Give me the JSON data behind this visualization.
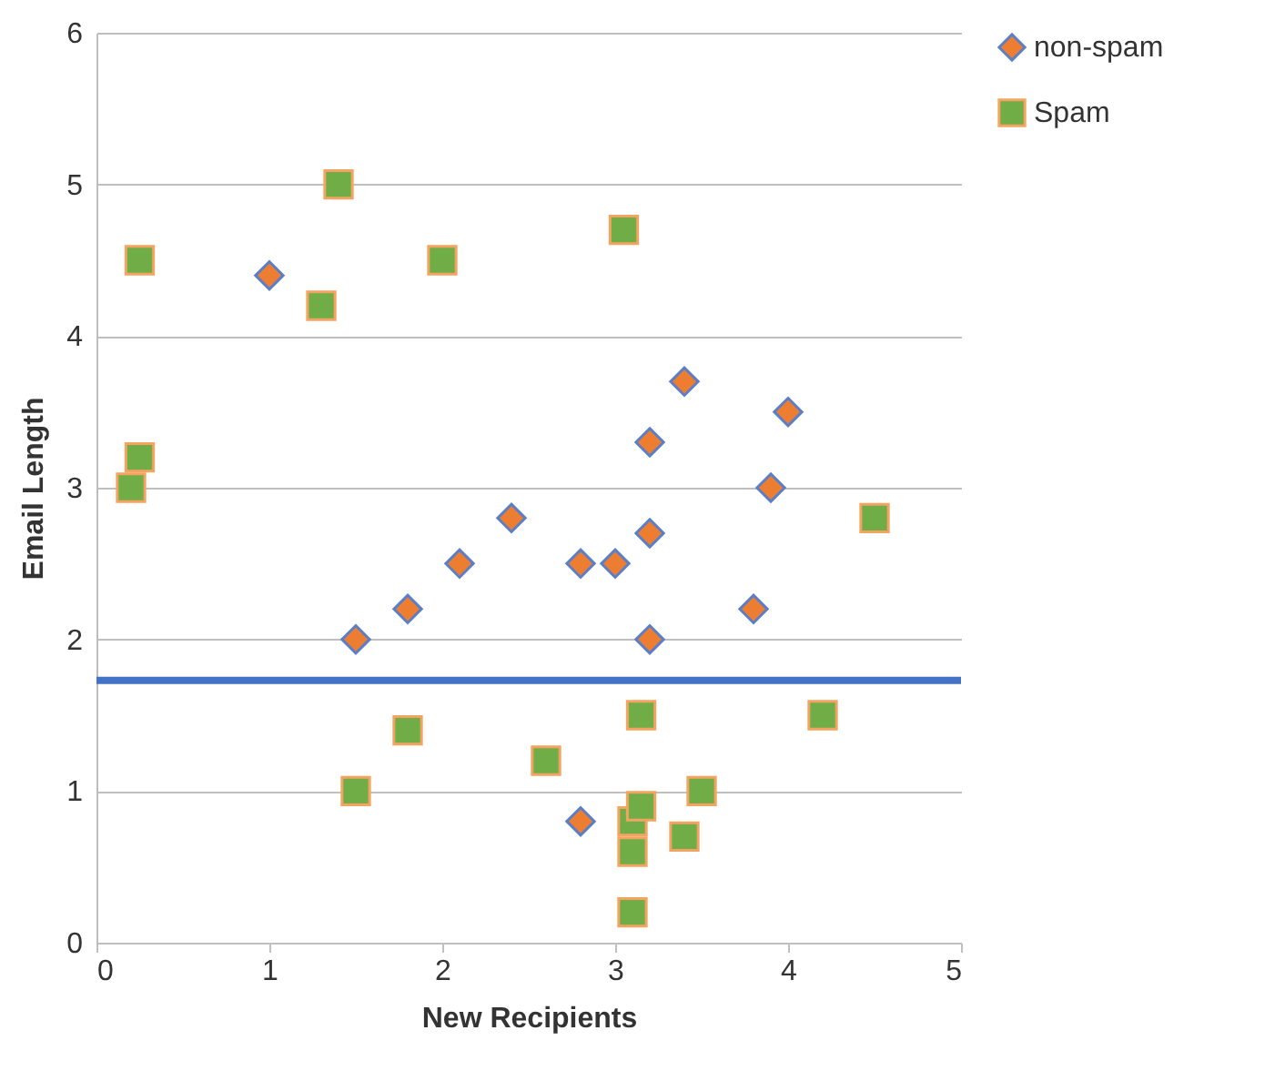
{
  "chart_data": {
    "type": "scatter",
    "xlabel": "New Recipients",
    "ylabel": "Email Length",
    "xlim": [
      0,
      5
    ],
    "xticks": [
      0,
      1,
      2,
      3,
      4,
      5
    ],
    "ylim": [
      0,
      6
    ],
    "yticks": [
      0,
      1,
      2,
      3,
      4,
      5,
      6
    ],
    "grid": "y",
    "legend": "right",
    "series": [
      {
        "name": "non-spam",
        "color": "#ed7d31",
        "marker": "diamond",
        "x": [
          1.0,
          1.5,
          1.8,
          2.1,
          2.4,
          2.8,
          3.0,
          3.2,
          3.4,
          3.2,
          3.2,
          3.8,
          3.9,
          4.0,
          2.8
        ],
        "values": [
          4.4,
          2.0,
          2.2,
          2.5,
          2.8,
          2.5,
          2.5,
          3.3,
          3.7,
          2.7,
          2.0,
          2.2,
          3.0,
          3.5,
          0.8
        ]
      },
      {
        "name": "Spam",
        "color": "#70ad47",
        "marker": "square",
        "x": [
          0.25,
          0.2,
          0.25,
          1.4,
          1.3,
          2.0,
          3.05,
          4.5,
          1.5,
          1.8,
          2.6,
          3.15,
          3.5,
          4.2,
          3.1,
          3.15,
          3.1,
          3.4,
          3.1
        ],
        "values": [
          4.5,
          3.0,
          3.2,
          5.0,
          4.2,
          4.5,
          4.7,
          2.8,
          1.0,
          1.4,
          1.2,
          1.5,
          1.0,
          1.5,
          0.8,
          0.9,
          0.6,
          0.7,
          0.2
        ]
      }
    ],
    "ref_lines": [
      {
        "axis": "y",
        "value": 1.73,
        "color": "#4472c4"
      }
    ]
  }
}
